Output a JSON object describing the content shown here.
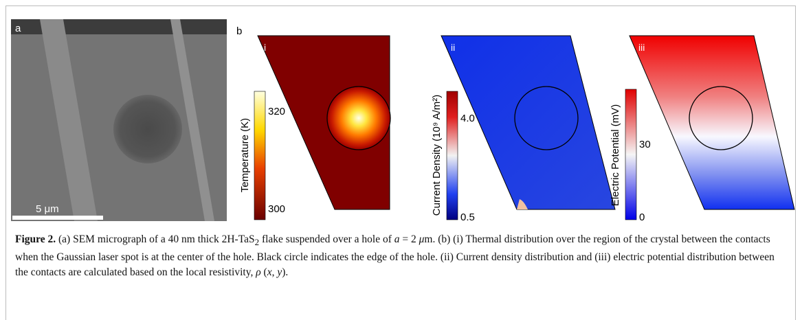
{
  "figure": {
    "panel_a": {
      "label": "a",
      "scale_bar": "5 μm"
    },
    "panel_b": {
      "label": "b",
      "subpanels": [
        {
          "label": "i",
          "colorbar_title": "Temperature (K)",
          "ticks": [
            "320",
            "300"
          ]
        },
        {
          "label": "ii",
          "colorbar_title": "Current Density (10⁹ A/m²)",
          "ticks": [
            "4.0",
            "0.5"
          ]
        },
        {
          "label": "iii",
          "colorbar_title": "Electric Potential (mV)",
          "ticks": [
            "30",
            "0"
          ]
        }
      ]
    },
    "caption": {
      "label": "Figure 2.",
      "segments": [
        " (a) SEM micrograph of a 40 nm thick 2H-TaS",
        "2",
        " flake suspended over a hole of ",
        "a",
        " = 2 ",
        "μ",
        "m. (b) (i) Thermal distribution over the region of the crystal between the contacts when the Gaussian laser spot is at the center of the hole. Black circle indicates the edge of the hole. (ii) Current density distribution and (iii) electric potential distribution between the contacts are calculated based on the local resistivity, ",
        "ρ",
        " (",
        "x",
        ", ",
        "y",
        ")."
      ]
    }
  }
}
